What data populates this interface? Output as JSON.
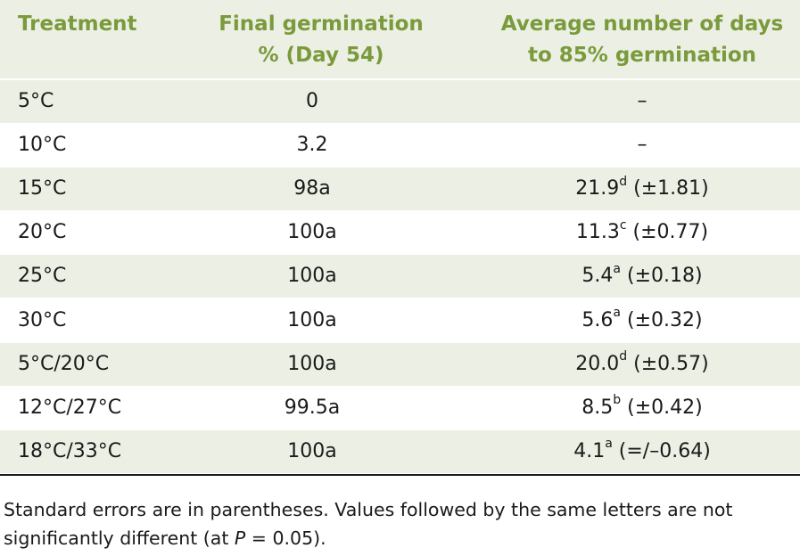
{
  "headers": {
    "treatment": "Treatment",
    "final_line1": "Final germination",
    "final_line2": "% (Day 54)",
    "avg_line1": "Average number of days",
    "avg_line2": "to 85% germination"
  },
  "rows": [
    {
      "treatment": "5°C",
      "final": "0",
      "avg_value": "–",
      "avg_sup": "",
      "avg_se": ""
    },
    {
      "treatment": "10°C",
      "final": "3.2",
      "avg_value": "–",
      "avg_sup": "",
      "avg_se": ""
    },
    {
      "treatment": "15°C",
      "final": "98a",
      "avg_value": "21.9",
      "avg_sup": "d",
      "avg_se": " (±1.81)"
    },
    {
      "treatment": "20°C",
      "final": "100a",
      "avg_value": "11.3",
      "avg_sup": "c",
      "avg_se": " (±0.77)"
    },
    {
      "treatment": "25°C",
      "final": "100a",
      "avg_value": "5.4",
      "avg_sup": "a",
      "avg_se": " (±0.18)"
    },
    {
      "treatment": "30°C",
      "final": "100a",
      "avg_value": "5.6",
      "avg_sup": "a",
      "avg_se": " (±0.32)"
    },
    {
      "treatment": "5°C/20°C",
      "final": "100a",
      "avg_value": "20.0",
      "avg_sup": "d",
      "avg_se": " (±0.57)"
    },
    {
      "treatment": "12°C/27°C",
      "final": "99.5a",
      "avg_value": "8.5",
      "avg_sup": "b",
      "avg_se": " (±0.42)"
    },
    {
      "treatment": "18°C/33°C",
      "final": "100a",
      "avg_value": "4.1",
      "avg_sup": "a",
      "avg_se": " (=/–0.64)"
    }
  ],
  "footnote": {
    "part1": "Standard errors are in parentheses. Values followed by the same letters are not significantly different (at ",
    "p": "P",
    "part2": " = 0.05)."
  },
  "colors": {
    "header_text": "#7a9a3c",
    "shade": "#ecf0e4"
  }
}
